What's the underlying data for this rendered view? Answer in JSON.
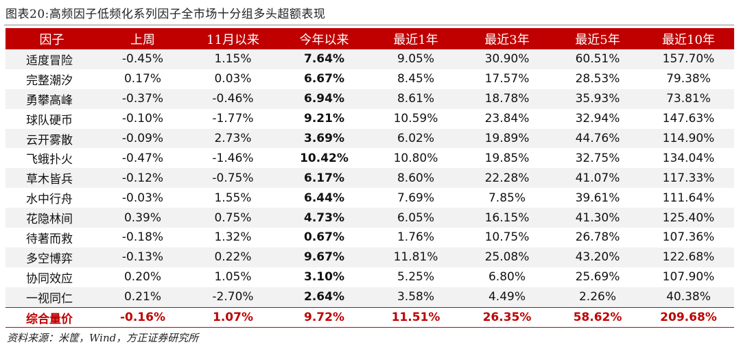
{
  "caption": "图表20:高频因子低频化系列因子全市场十分组多头超额表现",
  "headers": [
    "因子",
    "上周",
    "11月以来",
    "今年以来",
    "最近1年",
    "最近3年",
    "最近5年",
    "最近10年"
  ],
  "rows": [
    {
      "name": "适度冒险",
      "week": "-0.45%",
      "since_nov": "1.15%",
      "ytd": "7.64%",
      "y1": "9.05%",
      "y3": "30.90%",
      "y5": "60.51%",
      "y10": "157.70%"
    },
    {
      "name": "完整潮汐",
      "week": "0.17%",
      "since_nov": "0.03%",
      "ytd": "6.67%",
      "y1": "8.45%",
      "y3": "17.57%",
      "y5": "28.53%",
      "y10": "79.38%"
    },
    {
      "name": "勇攀高峰",
      "week": "-0.37%",
      "since_nov": "-0.46%",
      "ytd": "6.94%",
      "y1": "8.61%",
      "y3": "18.78%",
      "y5": "35.93%",
      "y10": "73.81%"
    },
    {
      "name": "球队硬币",
      "week": "-0.10%",
      "since_nov": "-1.77%",
      "ytd": "9.21%",
      "y1": "10.59%",
      "y3": "23.84%",
      "y5": "32.94%",
      "y10": "147.63%"
    },
    {
      "name": "云开雾散",
      "week": "-0.09%",
      "since_nov": "2.73%",
      "ytd": "3.69%",
      "y1": "6.02%",
      "y3": "19.89%",
      "y5": "44.76%",
      "y10": "114.90%"
    },
    {
      "name": "飞蛾扑火",
      "week": "-0.47%",
      "since_nov": "-1.46%",
      "ytd": "10.42%",
      "y1": "10.80%",
      "y3": "19.85%",
      "y5": "32.75%",
      "y10": "134.04%"
    },
    {
      "name": "草木皆兵",
      "week": "-0.12%",
      "since_nov": "-0.75%",
      "ytd": "6.17%",
      "y1": "8.60%",
      "y3": "22.28%",
      "y5": "41.07%",
      "y10": "117.33%"
    },
    {
      "name": "水中行舟",
      "week": "-0.03%",
      "since_nov": "1.55%",
      "ytd": "6.44%",
      "y1": "7.69%",
      "y3": "7.85%",
      "y5": "39.61%",
      "y10": "111.64%"
    },
    {
      "name": "花隐林间",
      "week": "0.39%",
      "since_nov": "0.75%",
      "ytd": "4.73%",
      "y1": "6.05%",
      "y3": "16.15%",
      "y5": "41.30%",
      "y10": "125.40%"
    },
    {
      "name": "待著而救",
      "week": "-0.18%",
      "since_nov": "1.32%",
      "ytd": "0.67%",
      "y1": "1.76%",
      "y3": "10.75%",
      "y5": "26.78%",
      "y10": "107.36%"
    },
    {
      "name": "多空博弈",
      "week": "-0.13%",
      "since_nov": "0.22%",
      "ytd": "9.67%",
      "y1": "11.81%",
      "y3": "25.08%",
      "y5": "43.20%",
      "y10": "122.68%"
    },
    {
      "name": "协同效应",
      "week": "0.20%",
      "since_nov": "1.05%",
      "ytd": "3.10%",
      "y1": "5.25%",
      "y3": "6.80%",
      "y5": "25.69%",
      "y10": "107.90%"
    },
    {
      "name": "一视同仁",
      "week": "0.21%",
      "since_nov": "-2.70%",
      "ytd": "2.64%",
      "y1": "3.58%",
      "y3": "4.49%",
      "y5": "2.26%",
      "y10": "40.38%"
    }
  ],
  "summary": {
    "name": "综合量价",
    "week": "-0.16%",
    "since_nov": "1.07%",
    "ytd": "9.72%",
    "y1": "11.51%",
    "y3": "26.35%",
    "y5": "58.62%",
    "y10": "209.68%"
  },
  "source": "资料来源：米筐，Wind，方正证券研究所",
  "colors": {
    "header_bg": "#c00000",
    "header_text": "#ffffff",
    "stripe": "#f2f2f2",
    "summary_text": "#c00000"
  }
}
